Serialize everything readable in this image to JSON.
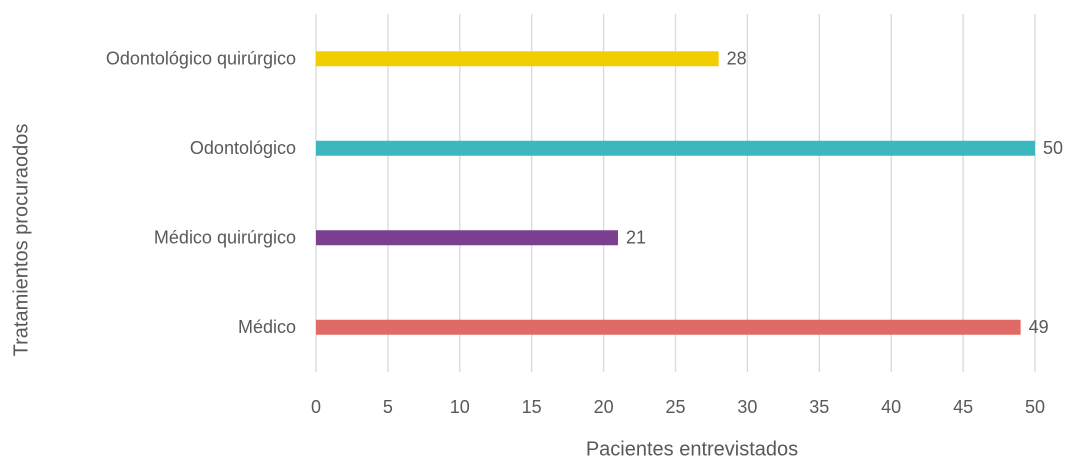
{
  "chart_data": {
    "type": "barh",
    "xlabel": "Pacientes entrevistados",
    "ylabel": "Tratamientos procuraodos",
    "categories": [
      "Odontológico quirúrgico",
      "Odontológico",
      "Médico quirúrgico",
      "Médico"
    ],
    "values": [
      28,
      50,
      21,
      49
    ],
    "colors": [
      "#f2cd00",
      "#3bb8bd",
      "#7b3f8f",
      "#e06b66"
    ],
    "xlim": [
      0,
      50
    ],
    "xticks": [
      0,
      5,
      10,
      15,
      20,
      25,
      30,
      35,
      40,
      45,
      50
    ],
    "grid": true
  }
}
